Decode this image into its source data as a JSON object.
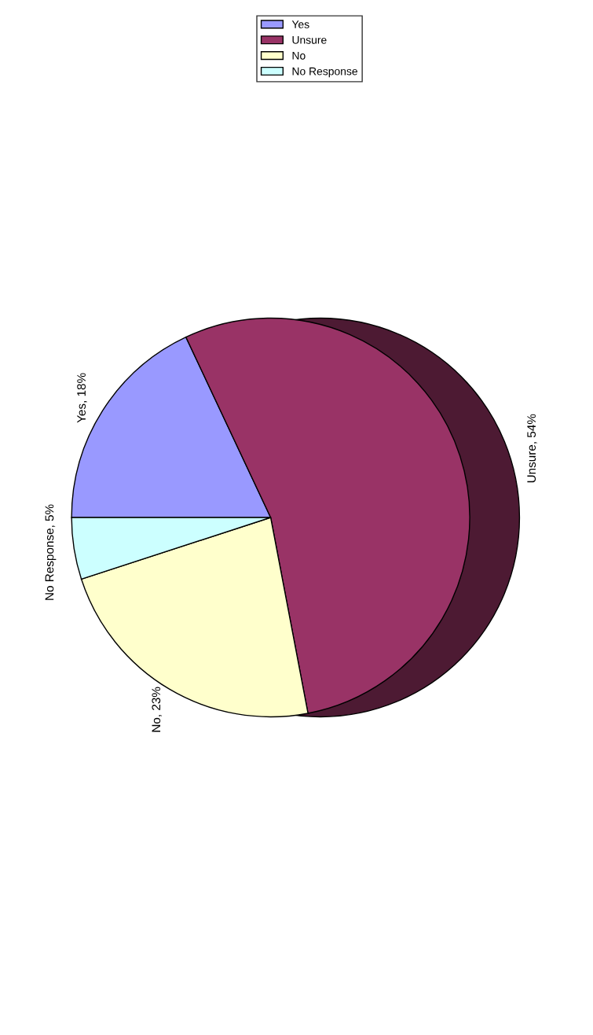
{
  "chart_data": {
    "type": "pie",
    "categories": [
      "Yes",
      "Unsure",
      "No",
      "No Response"
    ],
    "values": [
      18,
      54,
      23,
      5
    ],
    "colors": [
      "#9999ff",
      "#993366",
      "#ffffcc",
      "#ccffff"
    ],
    "value_labels": [
      "Yes, 18%",
      "Unsure, 54%",
      "No, 23%",
      "No Response, 5%"
    ],
    "legend": "top right"
  }
}
